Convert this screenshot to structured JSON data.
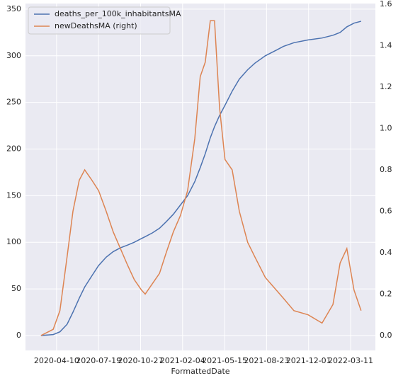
{
  "chart_data": {
    "type": "line",
    "xlabel": "FormattedDate",
    "x": [
      "2020-03-04",
      "2020-04-02",
      "2020-04-18",
      "2020-05-05",
      "2020-05-19",
      "2020-06-03",
      "2020-06-16",
      "2020-07-03",
      "2020-07-19",
      "2020-08-06",
      "2020-08-23",
      "2020-09-09",
      "2020-09-26",
      "2020-10-12",
      "2020-10-29",
      "2020-11-07",
      "2020-11-24",
      "2020-12-11",
      "2020-12-27",
      "2021-01-13",
      "2021-01-30",
      "2021-02-16",
      "2021-03-05",
      "2021-03-18",
      "2021-03-30",
      "2021-04-11",
      "2021-04-21",
      "2021-05-03",
      "2021-05-16",
      "2021-06-02",
      "2021-06-19",
      "2021-07-09",
      "2021-07-26",
      "2021-08-20",
      "2021-09-15",
      "2021-10-02",
      "2021-10-27",
      "2021-11-30",
      "2022-01-02",
      "2022-01-28",
      "2022-02-14",
      "2022-03-02",
      "2022-03-19",
      "2022-04-05"
    ],
    "series": [
      {
        "name": "deaths_per_100k_inhabitantsMA",
        "color": "#4c72b0",
        "values": [
          0,
          1,
          4,
          12,
          25,
          40,
          52,
          64,
          75,
          84,
          90,
          94,
          97,
          100,
          104,
          106,
          110,
          115,
          122,
          130,
          140,
          150,
          165,
          180,
          195,
          212,
          224,
          236,
          247,
          262,
          275,
          285,
          292,
          300,
          306,
          310,
          314,
          317,
          319,
          322,
          325,
          331,
          335,
          337
        ]
      },
      {
        "name": "newDeathsMA (right)",
        "color": "#dd8452",
        "axis": "y2",
        "values": [
          0,
          0.03,
          0.12,
          0.38,
          0.6,
          0.75,
          0.8,
          0.75,
          0.7,
          0.6,
          0.5,
          0.42,
          0.34,
          0.27,
          0.22,
          0.2,
          0.25,
          0.3,
          0.4,
          0.5,
          0.58,
          0.7,
          0.95,
          1.25,
          1.32,
          1.52,
          1.52,
          1.1,
          0.85,
          0.8,
          0.6,
          0.45,
          0.38,
          0.28,
          0.22,
          0.18,
          0.12,
          0.1,
          0.06,
          0.15,
          0.35,
          0.42,
          0.22,
          0.12
        ]
      }
    ],
    "xlim": [
      "2020-01-27",
      "2022-05-09"
    ],
    "xticks": [
      "2020-04-10",
      "2020-07-19",
      "2020-10-27",
      "2021-02-04",
      "2021-05-15",
      "2021-08-23",
      "2021-12-01",
      "2022-03-11"
    ],
    "ylim": [
      -16,
      356
    ],
    "yticks": [
      0,
      50,
      100,
      150,
      200,
      250,
      300,
      350
    ],
    "y2lim": [
      -0.072,
      1.603
    ],
    "y2ticks": [
      {
        "value": 0,
        "label": "0.0"
      },
      0.2,
      0.4,
      0.6,
      0.8,
      {
        "value": 1,
        "label": "1.0"
      },
      1.2,
      1.4,
      1.6
    ],
    "grid": true,
    "legend": "upper left"
  }
}
